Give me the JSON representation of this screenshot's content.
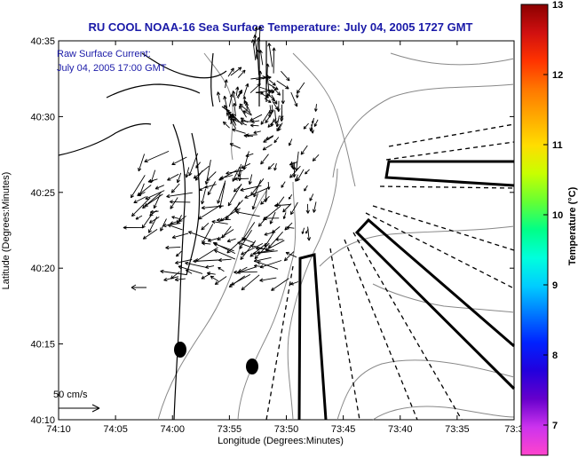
{
  "title": "RU COOL  NOAA-16  Sea Surface Temperature:  July 04, 2005 1727 GMT",
  "annotation": {
    "line1": "Raw Surface Current:",
    "line2": "July 04, 2005 17:00 GMT"
  },
  "axes": {
    "xlabel": "Longitude (Degrees:Minutes)",
    "ylabel": "Latitude (Degrees:Minutes)",
    "xticks": [
      "74:10",
      "74:05",
      "74:00",
      "73:55",
      "73:50",
      "73:45",
      "73:40",
      "73:35",
      "73:3"
    ],
    "yticks": [
      "40:35",
      "40:30",
      "40:25",
      "40:20",
      "40:15",
      "40:10"
    ]
  },
  "scale": {
    "label": "50 cm/s"
  },
  "colorbar": {
    "label": "Temperature (°C)",
    "ticks": [
      "13",
      "12",
      "11",
      "10",
      "9",
      "8",
      "7"
    ],
    "colors": [
      "#8b0000",
      "#d01010",
      "#ff3300",
      "#ff7700",
      "#ffaa00",
      "#ffdd00",
      "#c8ff00",
      "#66ff33",
      "#00ff88",
      "#00ffdd",
      "#00ccff",
      "#0077ff",
      "#0022ff",
      "#2200dd",
      "#6600cc",
      "#cc33ee",
      "#ff44cc"
    ]
  },
  "colors": {
    "title": "#1a1aa8",
    "annotation": "#1a1aa8",
    "land": "#000000",
    "contour": "#888888"
  }
}
